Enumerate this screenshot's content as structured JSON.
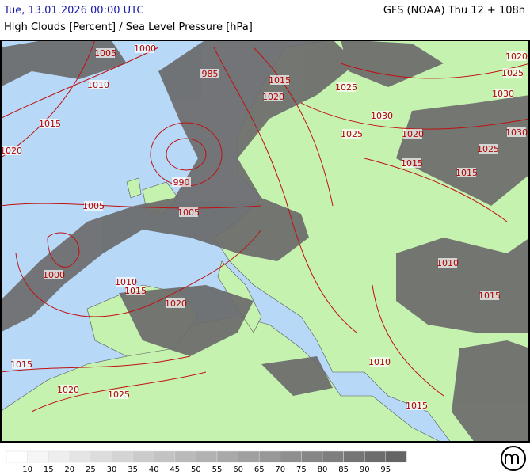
{
  "header": {
    "timestamp": "Tue, 13.01.2026 00:00 UTC",
    "model": "GFS (NOAA) Thu 12 + 108h",
    "subtitle": "High Clouds [Percent] / Sea Level Pressure [hPa]"
  },
  "isobar_labels": [
    1005,
    1000,
    1010,
    985,
    1015,
    1020,
    1025,
    1020,
    1025,
    1030,
    1030,
    1025,
    1020,
    1030,
    1025,
    1015,
    1015,
    1015,
    1020,
    990,
    1005,
    1005,
    1000,
    1010,
    1015,
    1020,
    1010,
    1015,
    1010,
    1015,
    1015,
    1020,
    1025
  ],
  "legend": {
    "ticks": [
      10,
      15,
      20,
      25,
      30,
      35,
      40,
      45,
      50,
      55,
      60,
      65,
      70,
      75,
      80,
      85,
      90,
      95
    ]
  }
}
